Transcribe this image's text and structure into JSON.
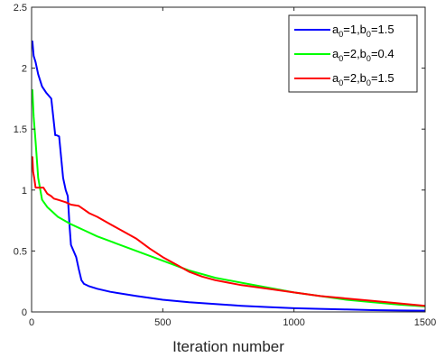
{
  "chart_data": {
    "type": "line",
    "title": "",
    "xlabel": "Iteration number",
    "ylabel": "",
    "xlim": [
      0,
      1500
    ],
    "ylim": [
      0,
      2.5
    ],
    "xticks": [
      0,
      500,
      1000,
      1500
    ],
    "xtick_labels": [
      "0",
      "500",
      "1000",
      "1500"
    ],
    "yticks": [
      0,
      0.5,
      1,
      1.5,
      2,
      2.5
    ],
    "ytick_labels": [
      "0",
      "0.5",
      "1",
      "1.5",
      "2",
      "2.5"
    ],
    "grid": false,
    "legend_position": "top-right",
    "series": [
      {
        "name": "a0=1,b0=1.5",
        "label_parts": [
          [
            "a",
            ""
          ],
          [
            "0",
            "sub"
          ],
          [
            "=1,b",
            ""
          ],
          [
            "0",
            "sub"
          ],
          [
            "=1.5",
            ""
          ]
        ],
        "color": "#0000ff",
        "x": [
          0,
          3,
          8,
          15,
          25,
          40,
          55,
          75,
          90,
          95,
          105,
          120,
          130,
          138,
          145,
          150,
          160,
          170,
          180,
          190,
          200,
          220,
          250,
          300,
          400,
          500,
          600,
          700,
          800,
          900,
          1000,
          1100,
          1200,
          1300,
          1400,
          1500
        ],
        "y": [
          2.22,
          2.22,
          2.1,
          2.05,
          1.95,
          1.85,
          1.8,
          1.75,
          1.45,
          1.45,
          1.44,
          1.1,
          1.0,
          0.95,
          0.7,
          0.55,
          0.5,
          0.45,
          0.35,
          0.26,
          0.23,
          0.21,
          0.19,
          0.165,
          0.13,
          0.1,
          0.08,
          0.065,
          0.05,
          0.04,
          0.03,
          0.025,
          0.02,
          0.015,
          0.012,
          0.01
        ]
      },
      {
        "name": "a0=2,b0=0.4",
        "label_parts": [
          [
            "a",
            ""
          ],
          [
            "0",
            "sub"
          ],
          [
            "=2,b",
            ""
          ],
          [
            "0",
            "sub"
          ],
          [
            "=0.4",
            ""
          ]
        ],
        "color": "#00ff00",
        "x": [
          0,
          3,
          8,
          15,
          25,
          40,
          60,
          80,
          100,
          150,
          200,
          250,
          300,
          400,
          500,
          600,
          700,
          800,
          900,
          1000,
          1100,
          1200,
          1300,
          1400,
          1500
        ],
        "y": [
          1.82,
          1.82,
          1.6,
          1.4,
          1.1,
          0.92,
          0.86,
          0.82,
          0.78,
          0.72,
          0.67,
          0.62,
          0.58,
          0.5,
          0.42,
          0.34,
          0.28,
          0.24,
          0.2,
          0.16,
          0.13,
          0.1,
          0.08,
          0.06,
          0.045
        ]
      },
      {
        "name": "a0=2,b0=1.5",
        "label_parts": [
          [
            "a",
            ""
          ],
          [
            "0",
            "sub"
          ],
          [
            "=2,b",
            ""
          ],
          [
            "0",
            "sub"
          ],
          [
            "=1.5",
            ""
          ]
        ],
        "color": "#ff0000",
        "x": [
          0,
          3,
          6,
          10,
          15,
          25,
          45,
          60,
          75,
          85,
          100,
          130,
          150,
          180,
          200,
          220,
          250,
          300,
          350,
          400,
          450,
          500,
          550,
          600,
          650,
          700,
          800,
          900,
          1000,
          1100,
          1200,
          1300,
          1400,
          1500
        ],
        "y": [
          1.27,
          1.27,
          1.15,
          1.1,
          1.02,
          1.02,
          1.02,
          0.97,
          0.95,
          0.93,
          0.92,
          0.9,
          0.88,
          0.87,
          0.84,
          0.81,
          0.78,
          0.72,
          0.66,
          0.6,
          0.52,
          0.45,
          0.39,
          0.33,
          0.29,
          0.26,
          0.22,
          0.19,
          0.16,
          0.13,
          0.11,
          0.09,
          0.07,
          0.05
        ]
      }
    ]
  }
}
